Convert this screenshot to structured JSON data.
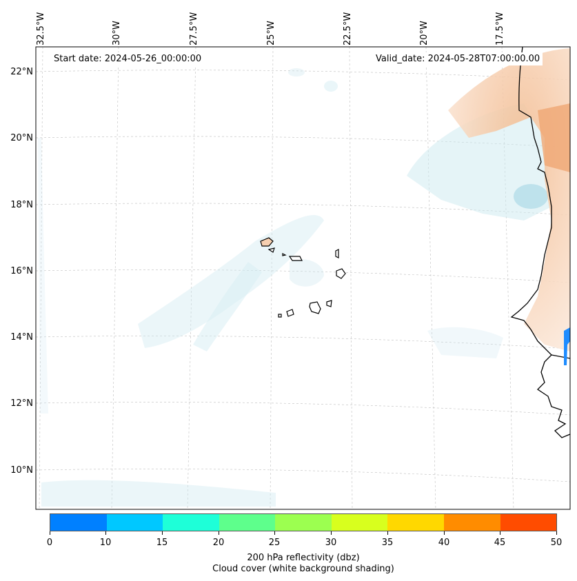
{
  "map": {
    "start_date": "Start date: 2024-05-26_00:00:00",
    "valid_date": "Valid_date: 2024-05-28T07:00:00.00",
    "lon_labels": [
      "32.5°W",
      "30°W",
      "27.5°W",
      "25°W",
      "22.5°W",
      "20°W",
      "17.5°W"
    ],
    "lat_labels": [
      "22°N",
      "20°N",
      "18°N",
      "16°N",
      "14°N",
      "12°N",
      "10°N"
    ],
    "features": [
      "Cape Verde islands",
      "West African coastline",
      "Cloud cover shading",
      "Reflectivity shading"
    ]
  },
  "colorbar": {
    "ticks": [
      "0",
      "10",
      "15",
      "20",
      "25",
      "30",
      "35",
      "40",
      "45",
      "50"
    ],
    "colors": [
      "#0080ff",
      "#00c8ff",
      "#1effd8",
      "#5eff8c",
      "#9cff50",
      "#d8ff1e",
      "#ffd800",
      "#ff8c00",
      "#ff4c00"
    ],
    "label_line1": "200 hPa reflectivity (dbz)",
    "label_line2": "Cloud cover (white background shading)"
  }
}
